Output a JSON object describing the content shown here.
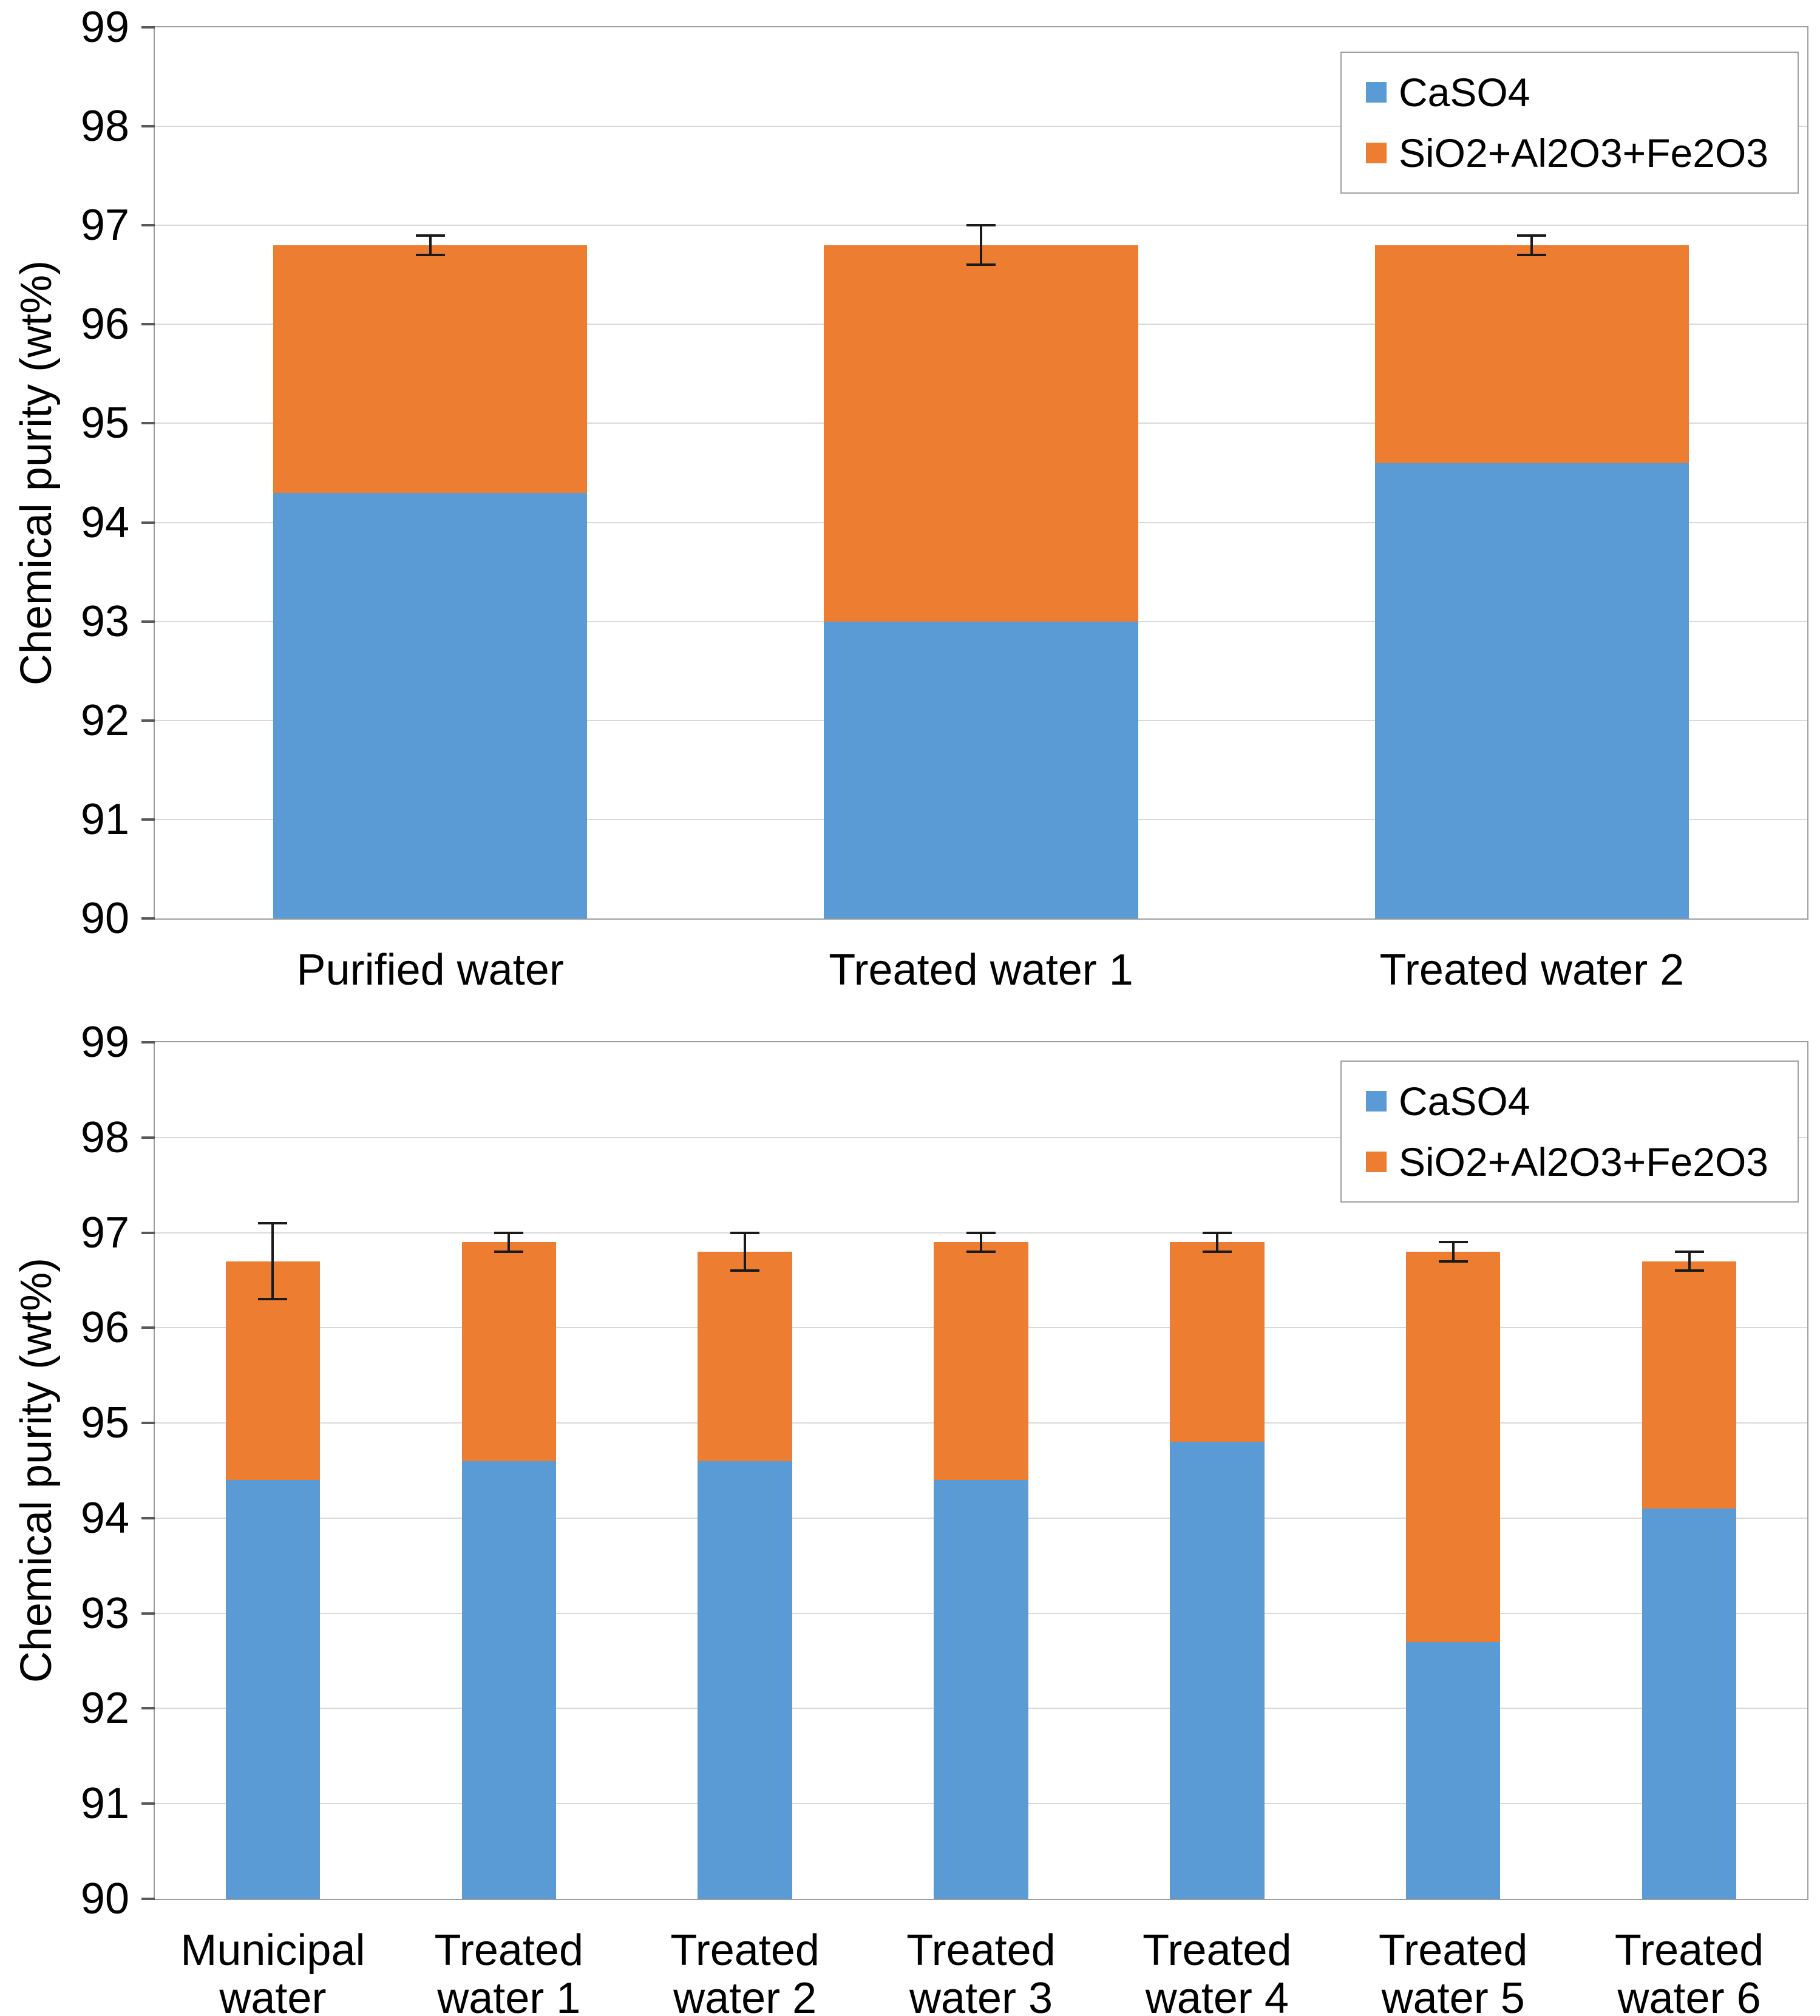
{
  "chart_data": [
    {
      "type": "bar",
      "stacked": true,
      "title": "",
      "xlabel": "",
      "ylabel": "Chemical purity (wt%)",
      "ylim": [
        90,
        99
      ],
      "ytick_step": 1,
      "grid": true,
      "legend_position": "top-right",
      "bar_width_ratio": 0.57,
      "categories": [
        "Purified water",
        "Treated water 1",
        "Treated water 2"
      ],
      "series": [
        {
          "name": "CaSO4",
          "color": "#5B9BD5",
          "values": [
            94.3,
            93.0,
            94.6
          ]
        },
        {
          "name": "SiO2+Al2O3+Fe2O3",
          "color": "#ED7D31",
          "values": [
            2.5,
            3.8,
            2.2
          ]
        }
      ],
      "totals": [
        96.8,
        96.8,
        96.8
      ],
      "error_bars": [
        0.1,
        0.2,
        0.1
      ],
      "error_bar_color": "#1a1a1a"
    },
    {
      "type": "bar",
      "stacked": true,
      "title": "",
      "xlabel": "",
      "ylabel": "Chemical purity (wt%)",
      "ylim": [
        90,
        99
      ],
      "ytick_step": 1,
      "grid": true,
      "legend_position": "top-right",
      "bar_width_ratio": 0.4,
      "categories": [
        "Municipal water",
        "Treated water 1",
        "Treated water 2",
        "Treated water 3",
        "Treated water 4",
        "Treated water 5",
        "Treated water 6"
      ],
      "series": [
        {
          "name": "CaSO4",
          "color": "#5B9BD5",
          "values": [
            94.4,
            94.6,
            94.6,
            94.4,
            94.8,
            92.7,
            94.1
          ]
        },
        {
          "name": "SiO2+Al2O3+Fe2O3",
          "color": "#ED7D31",
          "values": [
            2.3,
            2.3,
            2.2,
            2.5,
            2.1,
            4.1,
            2.6
          ]
        }
      ],
      "totals": [
        96.7,
        96.9,
        96.8,
        96.9,
        96.9,
        96.8,
        96.7
      ],
      "error_bars": [
        0.4,
        0.1,
        0.2,
        0.1,
        0.1,
        0.1,
        0.1
      ],
      "error_bar_color": "#1a1a1a"
    }
  ]
}
